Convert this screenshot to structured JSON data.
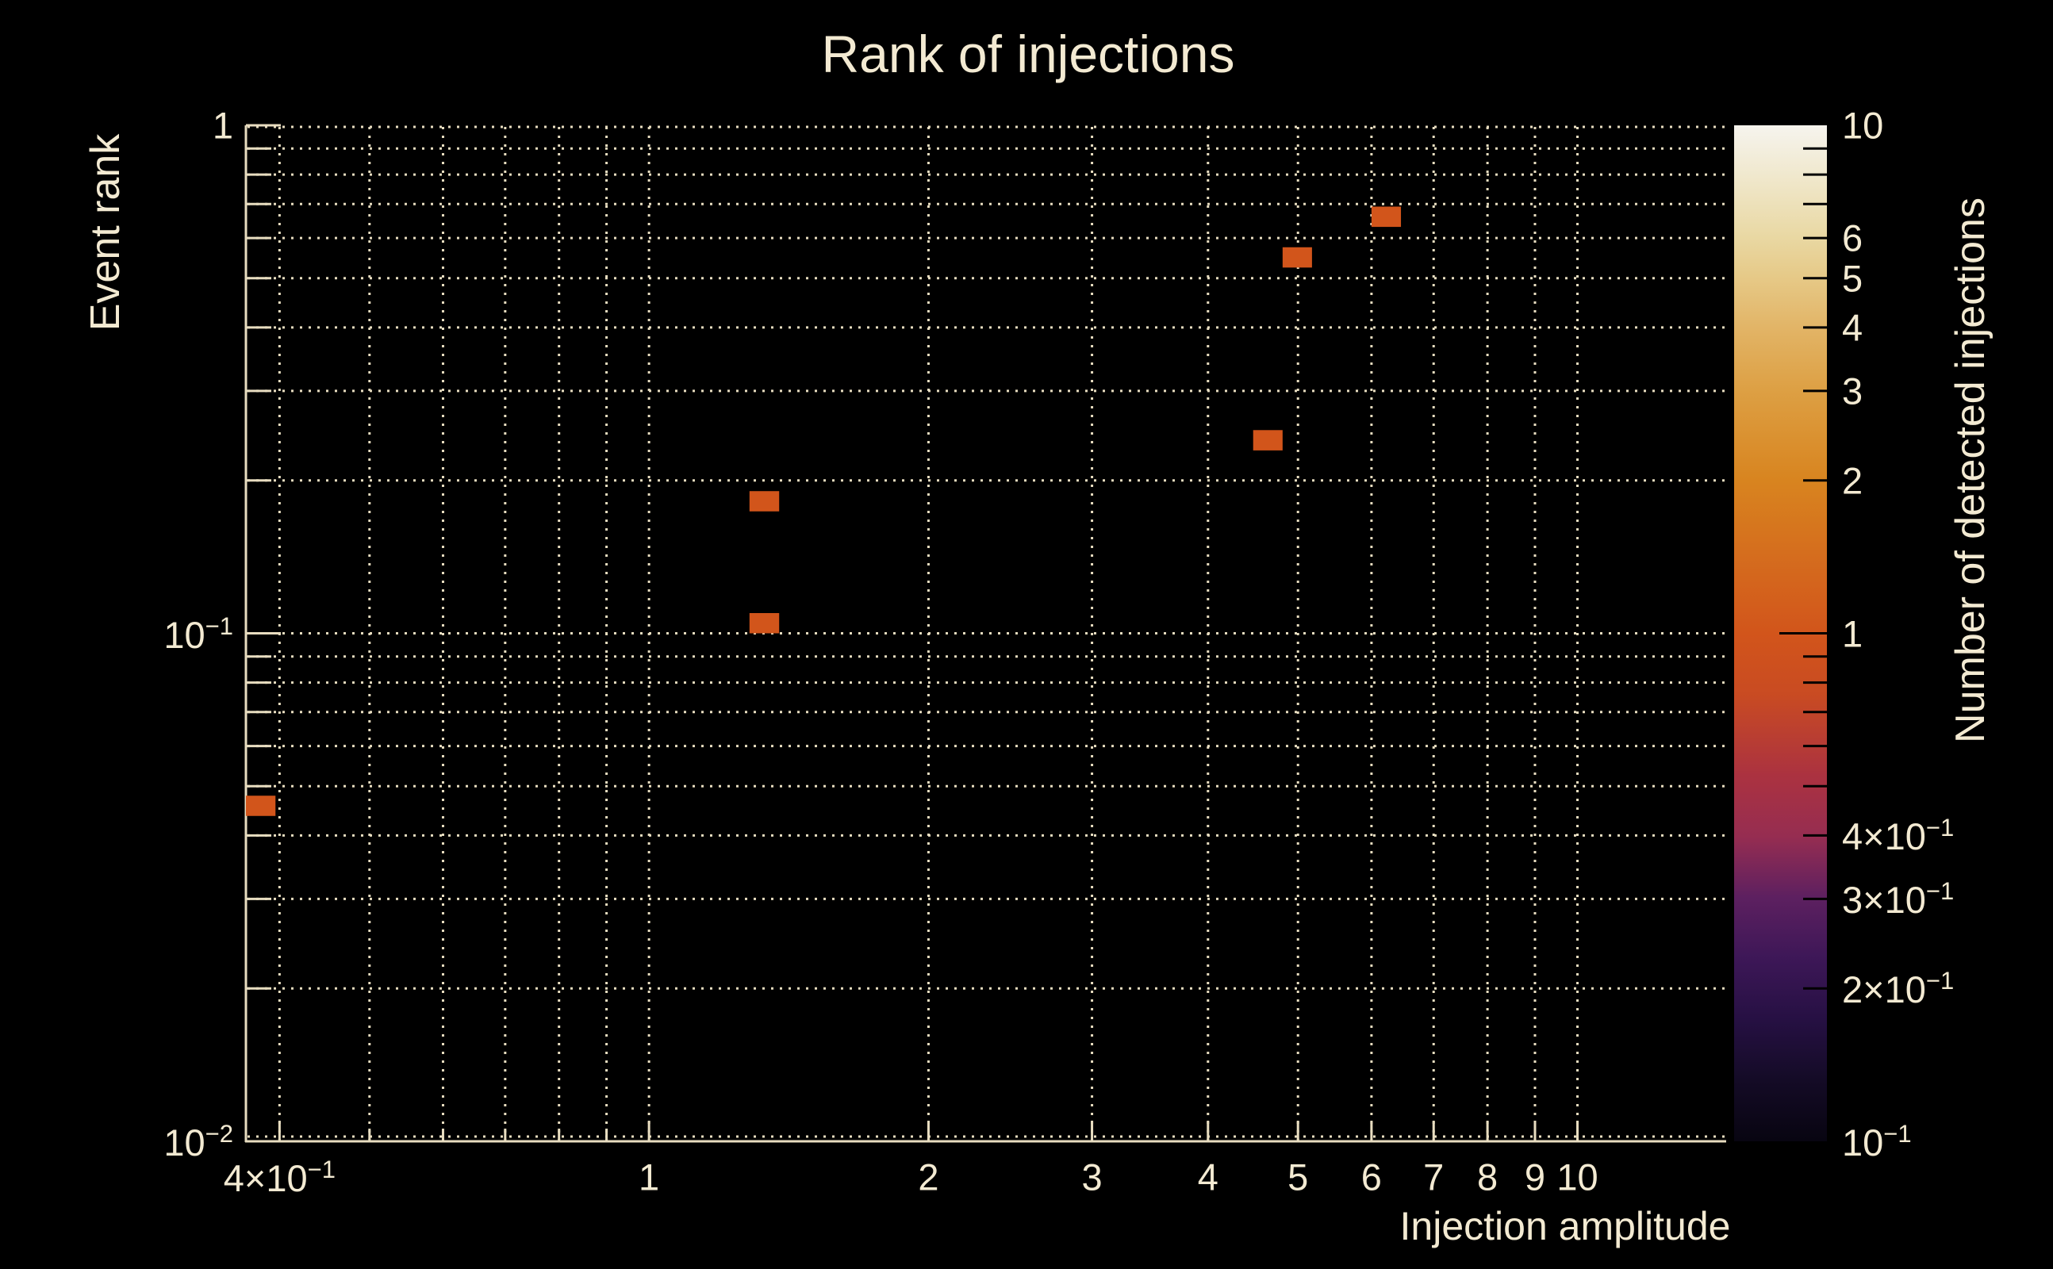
{
  "title": "Rank of injections",
  "background": "#000000",
  "colors": {
    "text": "#f3ead2",
    "line": "#e8ddc0",
    "grid": "#e8ddc0",
    "bin": "#d2551b",
    "colorbar_tick": "#000000"
  },
  "axes": {
    "x": {
      "title": "Injection amplitude",
      "scale": "log",
      "min": 0.368,
      "max": 14.46,
      "ticks": [
        {
          "v": 0.4,
          "base": "4×10",
          "exp": "−1"
        },
        {
          "v": 0.5
        },
        {
          "v": 0.6
        },
        {
          "v": 0.7
        },
        {
          "v": 0.8
        },
        {
          "v": 0.9
        },
        {
          "v": 1,
          "base": "1"
        },
        {
          "v": 2,
          "base": "2"
        },
        {
          "v": 3,
          "base": "3"
        },
        {
          "v": 4,
          "base": "4"
        },
        {
          "v": 5,
          "base": "5"
        },
        {
          "v": 6,
          "base": "6"
        },
        {
          "v": 7,
          "base": "7"
        },
        {
          "v": 8,
          "base": "8"
        },
        {
          "v": 9,
          "base": "9"
        },
        {
          "v": 10,
          "base": "10"
        }
      ]
    },
    "y": {
      "title": "Event rank",
      "scale": "log",
      "min": 0.01,
      "max": 1,
      "ticks": [
        {
          "v": 1,
          "base": "1"
        },
        {
          "v": 0.9
        },
        {
          "v": 0.8
        },
        {
          "v": 0.7
        },
        {
          "v": 0.6
        },
        {
          "v": 0.5
        },
        {
          "v": 0.4
        },
        {
          "v": 0.3
        },
        {
          "v": 0.2
        },
        {
          "v": 0.1,
          "base": "10",
          "exp": "−1"
        },
        {
          "v": 0.09
        },
        {
          "v": 0.08
        },
        {
          "v": 0.07
        },
        {
          "v": 0.06
        },
        {
          "v": 0.05
        },
        {
          "v": 0.04
        },
        {
          "v": 0.03
        },
        {
          "v": 0.02
        },
        {
          "v": 0.01,
          "base": "10",
          "exp": "−2"
        }
      ]
    }
  },
  "colorbar": {
    "title": "Number of detected injections",
    "scale": "log",
    "min": 0.1,
    "max": 10,
    "ticks": [
      {
        "v": 10,
        "base": "10"
      },
      {
        "v": 9
      },
      {
        "v": 8
      },
      {
        "v": 7
      },
      {
        "v": 6,
        "base": "6"
      },
      {
        "v": 5,
        "base": "5"
      },
      {
        "v": 4,
        "base": "4"
      },
      {
        "v": 3,
        "base": "3"
      },
      {
        "v": 2,
        "base": "2"
      },
      {
        "v": 1,
        "base": "1",
        "major": true
      },
      {
        "v": 0.9
      },
      {
        "v": 0.8
      },
      {
        "v": 0.7
      },
      {
        "v": 0.6
      },
      {
        "v": 0.5
      },
      {
        "v": 0.4,
        "base": "4×10",
        "exp": "−1"
      },
      {
        "v": 0.3,
        "base": "3×10",
        "exp": "−1"
      },
      {
        "v": 0.2,
        "base": "2×10",
        "exp": "−1"
      },
      {
        "v": 0.1,
        "base": "10",
        "exp": "−1"
      }
    ],
    "gradient": [
      {
        "t": 0.0,
        "c": "#080511"
      },
      {
        "t": 0.06,
        "c": "#140b26"
      },
      {
        "t": 0.12,
        "c": "#261043"
      },
      {
        "t": 0.18,
        "c": "#3d1757"
      },
      {
        "t": 0.24,
        "c": "#5d2060"
      },
      {
        "t": 0.3,
        "c": "#962d51"
      },
      {
        "t": 0.36,
        "c": "#ab3240"
      },
      {
        "t": 0.44,
        "c": "#c94b22"
      },
      {
        "t": 0.5,
        "c": "#d2551b"
      },
      {
        "t": 0.58,
        "c": "#d56e1e"
      },
      {
        "t": 0.65,
        "c": "#d8841f"
      },
      {
        "t": 0.74,
        "c": "#dda044"
      },
      {
        "t": 0.8,
        "c": "#e2b466"
      },
      {
        "t": 0.85,
        "c": "#e6c987"
      },
      {
        "t": 0.89,
        "c": "#e9d8a3"
      },
      {
        "t": 0.95,
        "c": "#f0e8cd"
      },
      {
        "t": 1.0,
        "c": "#f6f4ee"
      }
    ]
  },
  "chart_data": {
    "type": "heatmap",
    "title": "Rank of injections",
    "xlabel": "Injection amplitude",
    "ylabel": "Event rank",
    "zlabel": "Number of detected injections",
    "xscale": "log",
    "yscale": "log",
    "zscale": "log",
    "xlim": [
      0.368,
      14.46
    ],
    "ylim": [
      0.01,
      1.0
    ],
    "zlim": [
      0.1,
      10
    ],
    "grid": true,
    "legend_position": "right-colorbar",
    "bins": [
      {
        "x": [
          0.368,
          0.396
        ],
        "y": [
          0.0437,
          0.0479
        ],
        "value": 1
      },
      {
        "x": [
          1.283,
          1.381
        ],
        "y": [
          0.1,
          0.1096
        ],
        "value": 1
      },
      {
        "x": [
          1.283,
          1.381
        ],
        "y": [
          0.1738,
          0.1905
        ],
        "value": 1
      },
      {
        "x": [
          4.474,
          4.813
        ],
        "y": [
          0.2291,
          0.2512
        ],
        "value": 1
      },
      {
        "x": [
          4.813,
          5.177
        ],
        "y": [
          0.5248,
          0.5754
        ],
        "value": 1
      },
      {
        "x": [
          6.0,
          6.455
        ],
        "y": [
          0.631,
          0.6918
        ],
        "value": 1
      }
    ]
  }
}
